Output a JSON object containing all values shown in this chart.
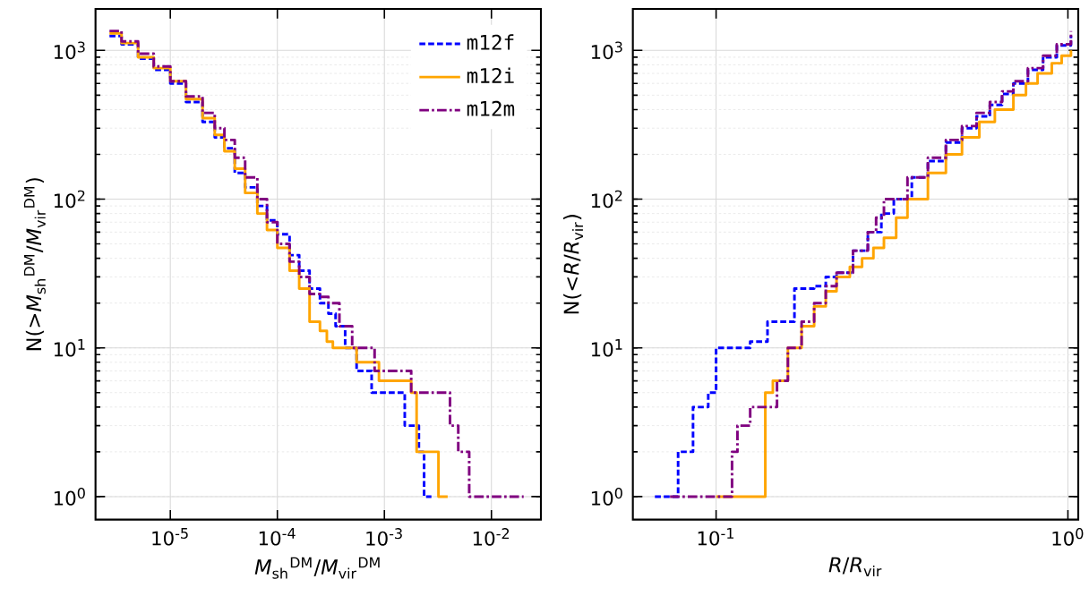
{
  "chart_data": [
    {
      "type": "step",
      "xlabel": "*M*$_{sh}$$^{DM}$/*M*$_{vir}$$^{DM}$",
      "ylabel": "N(>*M*$_{sh}$$^{DM}$/*M*$_{vir}$$^{DM}$)",
      "log": "xy",
      "grid": true,
      "legend": "top right",
      "marker": "none",
      "xlim": [
        2e-06,
        0.029
      ],
      "ylim": [
        0.7,
        1900
      ],
      "xticks": [
        {
          "value": 1e-05,
          "label": "10$^{-5}$"
        },
        {
          "value": 0.0001,
          "label": "10$^{-4}$"
        },
        {
          "value": 0.001,
          "label": "10$^{-3}$"
        },
        {
          "value": 0.01,
          "label": "10$^{-2}$"
        }
      ],
      "yticks": [
        {
          "value": 1,
          "label": "10$^{0}$"
        },
        {
          "value": 10,
          "label": "10$^{1}$"
        },
        {
          "value": 100,
          "label": "10$^{2}$"
        },
        {
          "value": 1000,
          "label": "10$^{3}$"
        }
      ],
      "series": [
        {
          "name": "m12f",
          "color": "#0000ff",
          "line_style": "dashed",
          "x": [
            2.7e-06,
            3.5e-06,
            5e-06,
            7e-06,
            1e-05,
            1.4e-05,
            2e-05,
            2.6e-05,
            3.2e-05,
            4e-05,
            5e-05,
            6.5e-05,
            8e-05,
            0.0001,
            0.00013,
            0.00016,
            0.0002,
            0.00025,
            0.0003,
            0.00035,
            0.00043,
            0.00055,
            0.00076,
            0.00155,
            0.0021,
            0.00235,
            0.00275
          ],
          "values": [
            1250,
            1100,
            880,
            740,
            600,
            450,
            330,
            260,
            220,
            150,
            120,
            90,
            72,
            58,
            42,
            33,
            25,
            20,
            17,
            14,
            10,
            7,
            5,
            3,
            2,
            1,
            1
          ]
        },
        {
          "name": "m12i",
          "color": "#ffa500",
          "line_style": "solid",
          "x": [
            2.7e-06,
            3.5e-06,
            5e-06,
            7e-06,
            1e-05,
            1.4e-05,
            2e-05,
            2.6e-05,
            3.2e-05,
            4e-05,
            5e-05,
            6.5e-05,
            8e-05,
            0.0001,
            0.00013,
            0.00016,
            0.0002,
            0.00025,
            0.00029,
            0.00033,
            0.00055,
            0.00089,
            0.00178,
            0.002,
            0.0032,
            0.0039
          ],
          "values": [
            1300,
            1120,
            900,
            760,
            620,
            470,
            350,
            270,
            210,
            160,
            110,
            80,
            62,
            47,
            33,
            25,
            15,
            13,
            11,
            10,
            8,
            6,
            5,
            2,
            1,
            1
          ]
        },
        {
          "name": "m12m",
          "color": "#800080",
          "line_style": "dashdot",
          "x": [
            2.7e-06,
            3.5e-06,
            5e-06,
            7e-06,
            1e-05,
            1.4e-05,
            2e-05,
            2.6e-05,
            3.2e-05,
            4e-05,
            5e-05,
            6.5e-05,
            8e-05,
            0.0001,
            0.00013,
            0.00016,
            0.0002,
            0.00025,
            0.0003,
            0.00038,
            0.0005,
            0.00081,
            0.00178,
            0.0041,
            0.0049,
            0.0062,
            0.02
          ],
          "values": [
            1350,
            1150,
            950,
            780,
            620,
            490,
            380,
            300,
            250,
            190,
            140,
            100,
            70,
            50,
            38,
            30,
            23,
            22,
            20,
            14,
            10,
            7,
            5,
            3,
            2,
            1,
            1
          ]
        }
      ]
    },
    {
      "type": "step",
      "xlabel": "*R*/*R*$_{vir}$",
      "ylabel": "N(<*R*/*R*$_{vir}$)",
      "log": "xy",
      "grid": true,
      "marker": "none",
      "xlim": [
        0.058,
        1.07
      ],
      "ylim": [
        0.7,
        1900
      ],
      "xticks": [
        {
          "value": 0.1,
          "label": "10$^{-1}$"
        },
        {
          "value": 1,
          "label": "10$^{0}$"
        }
      ],
      "yticks": [
        {
          "value": 1,
          "label": "10$^{0}$"
        },
        {
          "value": 10,
          "label": "10$^{1}$"
        },
        {
          "value": 100,
          "label": "10$^{2}$"
        },
        {
          "value": 1000,
          "label": "10$^{3}$"
        }
      ],
      "series": [
        {
          "color": "#0000ff",
          "line_style": "dashed",
          "x": [
            0.067,
            0.078,
            0.086,
            0.095,
            0.1,
            0.125,
            0.14,
            0.167,
            0.19,
            0.205,
            0.22,
            0.245,
            0.27,
            0.295,
            0.32,
            0.36,
            0.4,
            0.45,
            0.5,
            0.55,
            0.6,
            0.65,
            0.7,
            0.77,
            0.85,
            0.93,
            1.02
          ],
          "values": [
            1,
            2,
            4,
            5,
            10,
            11,
            15,
            25,
            26,
            30,
            32,
            45,
            60,
            80,
            100,
            140,
            180,
            240,
            300,
            360,
            430,
            510,
            600,
            740,
            900,
            1080,
            1250
          ]
        },
        {
          "color": "#ffa500",
          "line_style": "solid",
          "x": [
            0.1,
            0.138,
            0.145,
            0.16,
            0.175,
            0.19,
            0.205,
            0.22,
            0.24,
            0.26,
            0.28,
            0.3,
            0.325,
            0.35,
            0.4,
            0.45,
            0.5,
            0.56,
            0.62,
            0.7,
            0.76,
            0.82,
            0.9,
            0.96,
            1.02
          ],
          "values": [
            1,
            5,
            6,
            10,
            14,
            19,
            24,
            30,
            35,
            40,
            47,
            55,
            75,
            100,
            150,
            200,
            260,
            330,
            400,
            500,
            600,
            700,
            820,
            920,
            1000
          ]
        },
        {
          "color": "#800080",
          "line_style": "dashdot",
          "x": [
            0.074,
            0.111,
            0.115,
            0.125,
            0.149,
            0.16,
            0.175,
            0.19,
            0.205,
            0.22,
            0.245,
            0.27,
            0.285,
            0.3,
            0.35,
            0.4,
            0.45,
            0.5,
            0.55,
            0.6,
            0.65,
            0.7,
            0.77,
            0.85,
            0.93,
            1.02
          ],
          "values": [
            1,
            2,
            3,
            4,
            6,
            10,
            15,
            20,
            26,
            32,
            45,
            60,
            75,
            100,
            140,
            190,
            250,
            310,
            380,
            450,
            530,
            620,
            760,
            920,
            1100,
            1350
          ]
        }
      ]
    }
  ]
}
